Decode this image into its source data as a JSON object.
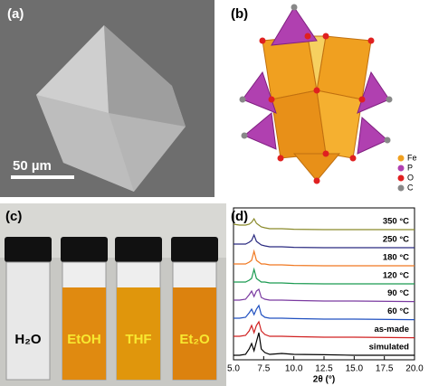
{
  "panels": {
    "a": {
      "label": "(a)",
      "scale_bar": "50 µm"
    },
    "b": {
      "label": "(b)",
      "legend": [
        "Fe",
        "P",
        "O",
        "C"
      ]
    },
    "c": {
      "label": "(c)",
      "vials": [
        "H₂O",
        "EtOH",
        "THF",
        "Et₂O"
      ]
    },
    "d": {
      "label": "(d)"
    }
  },
  "chart_data": {
    "type": "line",
    "xlabel": "2θ (°)",
    "x": [
      5,
      5.5,
      6,
      6.3,
      6.5,
      6.7,
      6.9,
      7.1,
      7.3,
      7.6,
      8,
      9,
      10,
      12.5,
      15,
      20
    ],
    "xlim": [
      5,
      20
    ],
    "xticks": [
      {
        "value": 5,
        "label": "5.0"
      },
      {
        "value": 7.5,
        "label": "7.5"
      },
      {
        "value": 10,
        "label": "10.0"
      },
      {
        "value": 12.5,
        "label": "12.5"
      },
      {
        "value": 15,
        "label": "15.0"
      },
      {
        "value": 17.5,
        "label": "17.5"
      },
      {
        "value": 20,
        "label": "20.0"
      }
    ],
    "ylim": [
      0,
      8.3
    ],
    "series": [
      {
        "name": "350 °C",
        "color": "#8a8a2a",
        "values": [
          7.5,
          7.45,
          7.45,
          7.5,
          7.6,
          7.8,
          7.55,
          7.45,
          7.35,
          7.3,
          7.25,
          7.25,
          7.22,
          7.2,
          7.2,
          7.2
        ]
      },
      {
        "name": "250 °C",
        "color": "#2a2a80",
        "values": [
          6.4,
          6.4,
          6.4,
          6.5,
          6.6,
          6.9,
          6.55,
          6.45,
          6.35,
          6.3,
          6.25,
          6.25,
          6.22,
          6.2,
          6.2,
          6.2
        ]
      },
      {
        "name": "180 °C",
        "color": "#f07820",
        "values": [
          5.3,
          5.3,
          5.3,
          5.4,
          5.5,
          6.0,
          5.5,
          5.4,
          5.3,
          5.3,
          5.25,
          5.25,
          5.22,
          5.2,
          5.2,
          5.2
        ]
      },
      {
        "name": "120 °C",
        "color": "#1a9a50",
        "values": [
          4.3,
          4.3,
          4.3,
          4.4,
          4.5,
          5.0,
          4.5,
          4.4,
          4.3,
          4.3,
          4.25,
          4.25,
          4.22,
          4.2,
          4.2,
          4.2
        ]
      },
      {
        "name": "90 °C",
        "color": "#7a3aa0",
        "values": [
          3.3,
          3.3,
          3.35,
          3.6,
          3.8,
          3.5,
          3.8,
          3.9,
          3.45,
          3.35,
          3.3,
          3.3,
          3.28,
          3.25,
          3.25,
          3.22
        ]
      },
      {
        "name": "60 °C",
        "color": "#2050c0",
        "values": [
          2.3,
          2.3,
          2.35,
          2.6,
          2.8,
          2.5,
          2.8,
          3.0,
          2.5,
          2.35,
          2.3,
          2.3,
          2.28,
          2.25,
          2.25,
          2.22
        ]
      },
      {
        "name": "as-made",
        "color": "#d02020",
        "values": [
          1.3,
          1.3,
          1.35,
          1.6,
          1.9,
          1.5,
          1.9,
          2.1,
          1.6,
          1.4,
          1.3,
          1.3,
          1.28,
          1.25,
          1.25,
          1.22
        ]
      },
      {
        "name": "simulated",
        "color": "#000000",
        "values": [
          0.25,
          0.25,
          0.3,
          0.6,
          0.9,
          0.5,
          1.0,
          1.5,
          0.6,
          0.4,
          0.3,
          0.35,
          0.3,
          0.28,
          0.25,
          0.25
        ]
      }
    ]
  }
}
